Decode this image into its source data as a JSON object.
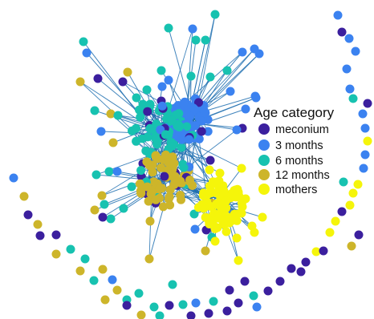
{
  "legend": {
    "title": "Age category",
    "items": [
      {
        "label": "meconium",
        "color": "#3b1f9e"
      },
      {
        "label": "3 months",
        "color": "#3b82f0"
      },
      {
        "label": "6 months",
        "color": "#17c2b0"
      },
      {
        "label": "12 months",
        "color": "#cdb52a"
      },
      {
        "label": "mothers",
        "color": "#f5f50a"
      }
    ]
  },
  "colors": {
    "edge": "#1f6fb0",
    "meconium": "#3b1f9e",
    "3 months": "#3b82f0",
    "6 months": "#17c2b0",
    "12 months": "#cdb52a",
    "mothers": "#f5f50a"
  }
}
